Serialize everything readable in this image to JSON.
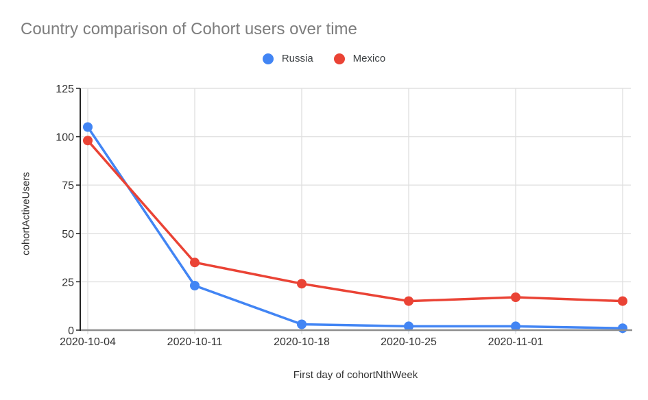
{
  "title": "Country comparison of Cohort users over time",
  "chart_data": {
    "type": "line",
    "title": "Country comparison of Cohort users over time",
    "xlabel": "First day of cohortNthWeek",
    "ylabel": "cohortActiveUsers",
    "x_tick_labels": [
      "2020-10-04",
      "2020-10-11",
      "2020-10-18",
      "2020-10-25",
      "2020-11-01"
    ],
    "num_points": 6,
    "ylim": [
      0,
      125
    ],
    "y_ticks": [
      0,
      25,
      50,
      75,
      100,
      125
    ],
    "grid": true,
    "legend_position": "top-center",
    "series": [
      {
        "name": "Russia",
        "color": "#4285F4",
        "values": [
          105,
          23,
          3,
          2,
          2,
          1
        ]
      },
      {
        "name": "Mexico",
        "color": "#EA4335",
        "values": [
          98,
          35,
          24,
          15,
          17,
          15
        ]
      }
    ]
  },
  "colors": {
    "title_text": "#7d7d7d",
    "axis_text": "#333333",
    "legend_text": "#3c4043",
    "gridline": "#e0e0e0",
    "baseline": "#8e8e8e",
    "axis_line": "#222222",
    "background": "#ffffff",
    "russia": "#4285F4",
    "mexico": "#EA4335"
  }
}
